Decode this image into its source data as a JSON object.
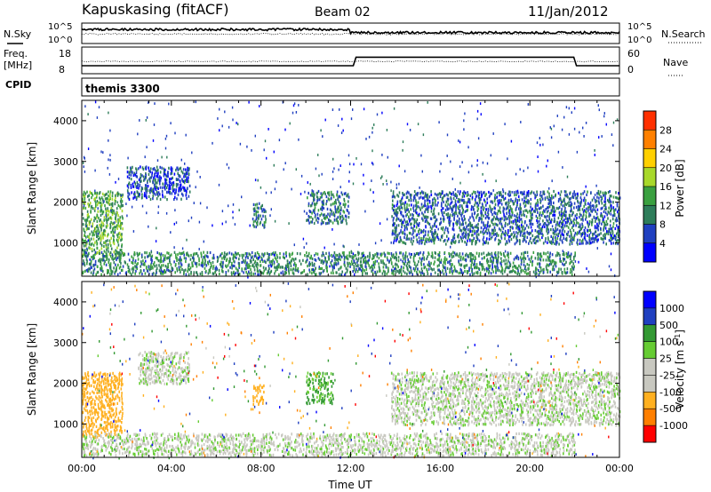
{
  "header": {
    "radar": "Kapuskasing (fitACF)",
    "beam": "Beam 02",
    "date": "11/Jan/2012"
  },
  "strip": {
    "nsky_label": "N.Sky",
    "nsky_ticks": [
      "10^5",
      "10^0"
    ],
    "nsearch_label": "N.Search",
    "nsearch_ticks": [
      "10^5",
      "10^0"
    ],
    "freq_label": "Freq.",
    "freq_unit": "[MHz]",
    "freq_ticks": [
      "18",
      "8"
    ],
    "nave_label": "Nave",
    "nave_ticks": [
      "60",
      "0"
    ],
    "cpid_label": "CPID",
    "cpid_value": "themis 3300"
  },
  "colors": {
    "power_scale": [
      "#0000ff",
      "#2040c0",
      "#2e7d5a",
      "#3aa040",
      "#a8d82a",
      "#ffd000",
      "#ff8000",
      "#ff3000",
      "#ff0000"
    ],
    "velocity_scale": [
      "#ff0000",
      "#ff7f00",
      "#ffb020",
      "#c8c8c0",
      "#c8c8c0",
      "#66cc33",
      "#339933",
      "#2040c0",
      "#0000ff"
    ],
    "ground_scatter": "#bebeb8"
  },
  "chart_data": [
    {
      "type": "heatmap",
      "title": "Power",
      "ylabel": "Slant Range [km]",
      "colorbar_label": "Power [dB]",
      "colorbar_ticks": [
        "4",
        "8",
        "12",
        "16",
        "20",
        "24",
        "28"
      ],
      "ylim": [
        180,
        4500
      ],
      "yticks": [
        "1000",
        "2000",
        "3000",
        "4000"
      ],
      "xlim_hours": [
        0,
        24
      ],
      "regions": [
        {
          "t0": 0.0,
          "t1": 1.8,
          "r0": 700,
          "r1": 2300,
          "value_db": 14
        },
        {
          "t0": 2.0,
          "t1": 4.8,
          "r0": 2100,
          "r1": 2900,
          "value_db": 6
        },
        {
          "t0": 7.6,
          "t1": 8.2,
          "r0": 1400,
          "r1": 2000,
          "value_db": 10
        },
        {
          "t0": 10.0,
          "t1": 11.9,
          "r0": 1500,
          "r1": 2300,
          "value_db": 9
        },
        {
          "t0": 13.8,
          "t1": 24.0,
          "r0": 1000,
          "r1": 2300,
          "value_db": 8
        },
        {
          "t0": 0.0,
          "t1": 22.0,
          "r0": 250,
          "r1": 800,
          "value_db": 11
        }
      ]
    },
    {
      "type": "heatmap",
      "title": "Velocity",
      "ylabel": "Slant Range [km]",
      "xlabel": "Time UT",
      "colorbar_label": "Velocity [m s-1]",
      "colorbar_ticks": [
        "1000",
        "500",
        "100",
        "25",
        "-25",
        "-100",
        "-500",
        "-1000"
      ],
      "ylim": [
        180,
        4500
      ],
      "yticks": [
        "1000",
        "2000",
        "3000",
        "4000"
      ],
      "xlim_hours": [
        0,
        24
      ],
      "xticks": [
        "00:00",
        "04:00",
        "08:00",
        "12:00",
        "16:00",
        "20:00",
        "00:00"
      ],
      "regions": [
        {
          "t0": 0.0,
          "t1": 1.8,
          "r0": 700,
          "r1": 2300,
          "value_ms": -300
        },
        {
          "t0": 2.5,
          "t1": 4.8,
          "r0": 2000,
          "r1": 2800,
          "value_ms": 0
        },
        {
          "t0": 7.6,
          "t1": 8.1,
          "r0": 1500,
          "r1": 2000,
          "value_ms": -200
        },
        {
          "t0": 10.0,
          "t1": 11.2,
          "r0": 1500,
          "r1": 2300,
          "value_ms": 100
        },
        {
          "t0": 13.8,
          "t1": 24.0,
          "r0": 1000,
          "r1": 2300,
          "value_ms": 0
        },
        {
          "t0": 0.0,
          "t1": 22.0,
          "r0": 250,
          "r1": 800,
          "value_ms": 0
        }
      ]
    }
  ]
}
